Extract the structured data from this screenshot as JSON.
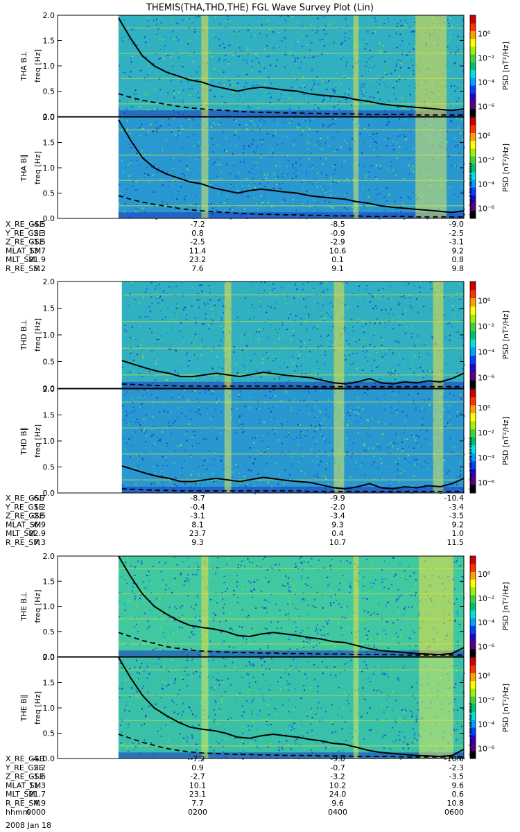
{
  "title": "THEMIS(THA,THD,THE) FGL Wave Survey Plot (Lin)",
  "chart_data": {
    "type": "heatmap",
    "x_range_hours": [
      0,
      6
    ],
    "y_range": [
      0,
      2.0
    ],
    "y_ticks": [
      "0.0",
      "0.5",
      "1.0",
      "1.5",
      "2.0"
    ],
    "ylabel": "freq [Hz]",
    "colorbar": {
      "label": "PSD [nT²/Hz]",
      "ticks": [
        "10⁰",
        "10⁻²",
        "10⁻⁴",
        "10⁻⁶"
      ],
      "colors": [
        "#000000",
        "#5a007a",
        "#2a00c8",
        "#0040ff",
        "#00a0ff",
        "#00e0e0",
        "#00c070",
        "#40d040",
        "#a0f000",
        "#ffff00",
        "#ffa000",
        "#ff3000",
        "#d00000"
      ]
    },
    "panels": [
      {
        "label": "THA B⊥",
        "stamp": "",
        "start_hour": 0.9,
        "solid": [
          1.95,
          1.55,
          1.2,
          1.0,
          0.88,
          0.8,
          0.72,
          0.68,
          0.6,
          0.55,
          0.5,
          0.55,
          0.58,
          0.55,
          0.52,
          0.5,
          0.45,
          0.42,
          0.4,
          0.38,
          0.33,
          0.3,
          0.25,
          0.22,
          0.2,
          0.18,
          0.16,
          0.14,
          0.12,
          0.15
        ],
        "dashed": [
          0.45,
          0.38,
          0.32,
          0.28,
          0.24,
          0.2,
          0.17,
          0.15,
          0.13,
          0.12,
          0.1,
          0.09,
          0.08,
          0.08,
          0.07,
          0.07,
          0.06,
          0.06,
          0.05,
          0.05,
          0.05,
          0.04,
          0.04,
          0.04,
          0.04,
          0.03,
          0.03,
          0.03,
          0.03,
          0.03
        ]
      },
      {
        "label": "THA B∥",
        "stamp": "Sun Sep  2 00:28:53 2012",
        "start_hour": 0.9,
        "solid": [
          1.95,
          1.55,
          1.2,
          1.0,
          0.88,
          0.8,
          0.72,
          0.68,
          0.6,
          0.55,
          0.5,
          0.55,
          0.58,
          0.55,
          0.52,
          0.5,
          0.45,
          0.42,
          0.4,
          0.38,
          0.33,
          0.3,
          0.25,
          0.22,
          0.2,
          0.18,
          0.16,
          0.14,
          0.12,
          0.15
        ],
        "dashed": [
          0.45,
          0.38,
          0.32,
          0.28,
          0.24,
          0.2,
          0.17,
          0.15,
          0.13,
          0.12,
          0.1,
          0.09,
          0.08,
          0.08,
          0.07,
          0.07,
          0.06,
          0.06,
          0.05,
          0.05,
          0.05,
          0.04,
          0.04,
          0.04,
          0.04,
          0.03,
          0.03,
          0.03,
          0.03,
          0.03
        ]
      },
      {
        "label": "THD B⊥",
        "stamp": "",
        "start_hour": 0.95,
        "solid": [
          0.52,
          0.45,
          0.38,
          0.32,
          0.28,
          0.22,
          0.22,
          0.25,
          0.28,
          0.25,
          0.22,
          0.26,
          0.3,
          0.27,
          0.24,
          0.22,
          0.2,
          0.15,
          0.1,
          0.08,
          0.12,
          0.18,
          0.1,
          0.08,
          0.12,
          0.1,
          0.14,
          0.12,
          0.18,
          0.28
        ],
        "dashed": [
          0.08,
          0.07,
          0.06,
          0.05,
          0.05,
          0.04,
          0.04,
          0.04,
          0.04,
          0.04,
          0.04,
          0.04,
          0.04,
          0.04,
          0.04,
          0.04,
          0.03,
          0.03,
          0.03,
          0.03,
          0.03,
          0.03,
          0.03,
          0.03,
          0.03,
          0.03,
          0.03,
          0.03,
          0.03,
          0.03
        ]
      },
      {
        "label": "THD B∥",
        "stamp": "Sun Sep  2 00:28:53 2012",
        "start_hour": 0.95,
        "solid": [
          0.52,
          0.45,
          0.38,
          0.32,
          0.28,
          0.22,
          0.22,
          0.25,
          0.28,
          0.25,
          0.22,
          0.26,
          0.3,
          0.27,
          0.24,
          0.22,
          0.2,
          0.15,
          0.1,
          0.08,
          0.12,
          0.18,
          0.1,
          0.08,
          0.12,
          0.1,
          0.14,
          0.12,
          0.18,
          0.28
        ],
        "dashed": [
          0.08,
          0.07,
          0.06,
          0.05,
          0.05,
          0.04,
          0.04,
          0.04,
          0.04,
          0.04,
          0.04,
          0.04,
          0.04,
          0.04,
          0.04,
          0.04,
          0.03,
          0.03,
          0.03,
          0.03,
          0.03,
          0.03,
          0.03,
          0.03,
          0.03,
          0.03,
          0.03,
          0.03,
          0.03,
          0.03
        ]
      },
      {
        "label": "THE B⊥",
        "stamp": "",
        "start_hour": 0.9,
        "solid": [
          2.0,
          1.6,
          1.25,
          1.0,
          0.85,
          0.72,
          0.62,
          0.58,
          0.55,
          0.5,
          0.42,
          0.4,
          0.45,
          0.48,
          0.45,
          0.42,
          0.38,
          0.35,
          0.3,
          0.28,
          0.22,
          0.16,
          0.12,
          0.1,
          0.08,
          0.06,
          0.05,
          0.04,
          0.06,
          0.18
        ],
        "dashed": [
          0.48,
          0.4,
          0.32,
          0.26,
          0.2,
          0.16,
          0.13,
          0.11,
          0.1,
          0.09,
          0.08,
          0.08,
          0.07,
          0.07,
          0.06,
          0.06,
          0.06,
          0.05,
          0.05,
          0.05,
          0.04,
          0.04,
          0.04,
          0.04,
          0.03,
          0.03,
          0.03,
          0.03,
          0.03,
          0.03
        ]
      },
      {
        "label": "THE B∥",
        "stamp": "Sun Sep  2 00:28:54 2012",
        "start_hour": 0.9,
        "solid": [
          2.0,
          1.6,
          1.25,
          1.0,
          0.85,
          0.72,
          0.62,
          0.58,
          0.55,
          0.5,
          0.42,
          0.4,
          0.45,
          0.48,
          0.45,
          0.42,
          0.38,
          0.35,
          0.3,
          0.28,
          0.22,
          0.16,
          0.12,
          0.1,
          0.08,
          0.06,
          0.05,
          0.04,
          0.06,
          0.18
        ],
        "dashed": [
          0.48,
          0.4,
          0.32,
          0.26,
          0.2,
          0.16,
          0.13,
          0.11,
          0.1,
          0.09,
          0.08,
          0.08,
          0.07,
          0.07,
          0.06,
          0.06,
          0.06,
          0.05,
          0.05,
          0.05,
          0.04,
          0.04,
          0.04,
          0.04,
          0.03,
          0.03,
          0.03,
          0.03,
          0.03,
          0.03
        ]
      }
    ],
    "ephemeris": [
      {
        "rows": [
          {
            "name": "X_RE_GSE",
            "vals": [
              "-4.5",
              "-7.2",
              "-8.5",
              "-9.0"
            ]
          },
          {
            "name": "Y_RE_GSE",
            "vals": [
              "2.3",
              "0.8",
              "-0.9",
              "-2.5"
            ]
          },
          {
            "name": "Z_RE_GSE",
            "vals": [
              "-1.5",
              "-2.5",
              "-2.9",
              "-3.1"
            ]
          },
          {
            "name": "MLAT_SM",
            "vals": [
              "13.7",
              "11.4",
              "10.6",
              "9.2"
            ]
          },
          {
            "name": "MLT_SM",
            "vals": [
              "21.9",
              "23.2",
              "0.1",
              "0.8"
            ]
          },
          {
            "name": "R_RE_SM",
            "vals": [
              "5.2",
              "7.6",
              "9.1",
              "9.8"
            ]
          }
        ]
      },
      {
        "rows": [
          {
            "name": "X_RE_GSE",
            "vals": [
              "-6.7",
              "-8.7",
              "-9.9",
              "-10.4"
            ]
          },
          {
            "name": "Y_RE_GSE",
            "vals": [
              "1.2",
              "-0.4",
              "-2.0",
              "-3.4"
            ]
          },
          {
            "name": "Z_RE_GSE",
            "vals": [
              "-2.5",
              "-3.1",
              "-3.4",
              "-3.5"
            ]
          },
          {
            "name": "MLAT_SM",
            "vals": [
              "6.9",
              "8.1",
              "9.3",
              "9.2"
            ]
          },
          {
            "name": "MLT_SM",
            "vals": [
              "22.9",
              "23.7",
              "0.4",
              "1.0"
            ]
          },
          {
            "name": "R_RE_SM",
            "vals": [
              "7.3",
              "9.3",
              "10.7",
              "11.5"
            ]
          }
        ]
      },
      {
        "rows": [
          {
            "name": "X_RE_GSE",
            "vals": [
              "-4.1",
              "-7.2",
              "-9.0",
              "-10.0"
            ]
          },
          {
            "name": "Y_RE_GSE",
            "vals": [
              "2.2",
              "0.9",
              "-0.7",
              "-2.3"
            ]
          },
          {
            "name": "Z_RE_GSE",
            "vals": [
              "-1.6",
              "-2.7",
              "-3.2",
              "-3.5"
            ]
          },
          {
            "name": "MLAT_SM",
            "vals": [
              "11.3",
              "10.1",
              "10.2",
              "9.6"
            ]
          },
          {
            "name": "MLT_SM",
            "vals": [
              "21.7",
              "23.1",
              "24.0",
              "0.6"
            ]
          },
          {
            "name": "R_RE_SM",
            "vals": [
              "4.9",
              "7.7",
              "9.6",
              "10.8"
            ]
          },
          {
            "name": "hhmm",
            "vals": [
              "0000",
              "0200",
              "0400",
              "0600"
            ]
          }
        ]
      }
    ],
    "date": "2008 Jan 18"
  }
}
